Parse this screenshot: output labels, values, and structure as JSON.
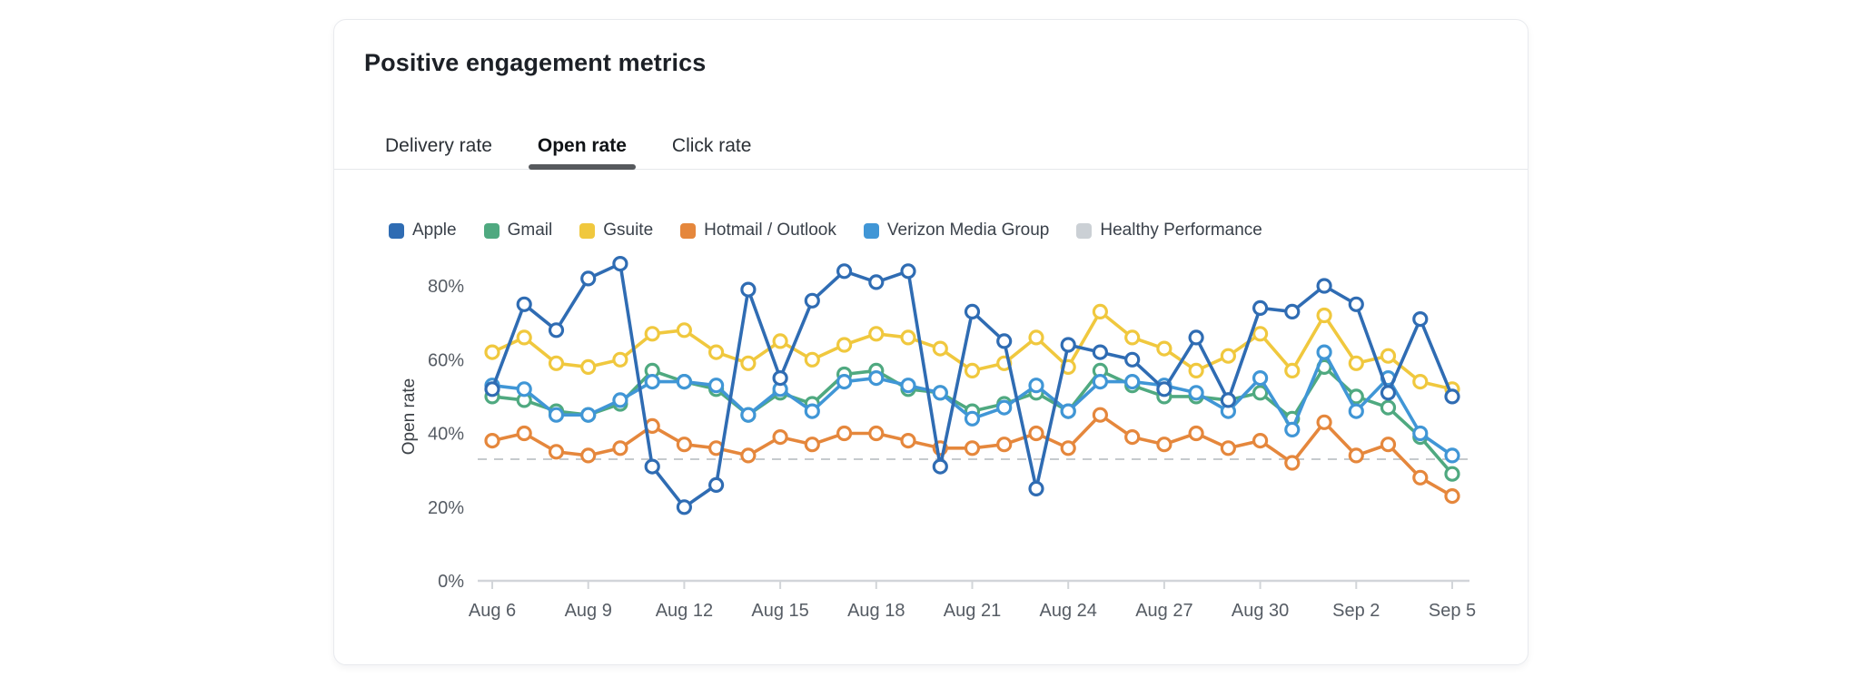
{
  "card": {
    "title": "Positive engagement metrics"
  },
  "tabs": {
    "items": [
      {
        "label": "Delivery rate",
        "active": false
      },
      {
        "label": "Open rate",
        "active": true
      },
      {
        "label": "Click rate",
        "active": false
      }
    ]
  },
  "chart_data": {
    "type": "line",
    "title": "Positive engagement metrics",
    "xlabel": "",
    "ylabel": "Open rate",
    "unit": "%",
    "ylim": [
      0,
      88
    ],
    "y_tick_labels": [
      "0%",
      "20%",
      "40%",
      "60%",
      "80%"
    ],
    "y_tick_values": [
      0,
      20,
      40,
      60,
      80
    ],
    "x_tick_labels": [
      "Aug 6",
      "Aug 9",
      "Aug 12",
      "Aug 15",
      "Aug 18",
      "Aug 21",
      "Aug 24",
      "Aug 27",
      "Aug 30",
      "Sep 2",
      "Sep 5"
    ],
    "x_start": "Aug 6",
    "x_end": "Sep 5",
    "x_step_days": 1,
    "points_per_series": 31,
    "grid": false,
    "legend_position": "top",
    "marker": "open-circle",
    "series": [
      {
        "name": "Apple",
        "color": "#2f6cb3",
        "values": [
          52,
          75,
          68,
          82,
          86,
          31,
          20,
          26,
          79,
          55,
          76,
          84,
          81,
          84,
          31,
          73,
          65,
          25,
          64,
          62,
          60,
          52,
          66,
          49,
          74,
          73,
          80,
          75,
          51,
          71,
          50
        ]
      },
      {
        "name": "Gmail",
        "color": "#4fa980",
        "values": [
          50,
          49,
          46,
          45,
          48,
          57,
          54,
          52,
          45,
          51,
          48,
          56,
          57,
          52,
          51,
          46,
          48,
          51,
          46,
          57,
          53,
          50,
          50,
          49,
          51,
          44,
          58,
          50,
          47,
          39,
          29
        ]
      },
      {
        "name": "Gsuite",
        "color": "#f0c83e",
        "values": [
          62,
          66,
          59,
          58,
          60,
          67,
          68,
          62,
          59,
          65,
          60,
          64,
          67,
          66,
          63,
          57,
          59,
          66,
          58,
          73,
          66,
          63,
          57,
          61,
          67,
          57,
          72,
          59,
          61,
          54,
          52
        ]
      },
      {
        "name": "Hotmail / Outlook",
        "color": "#e5873c",
        "values": [
          38,
          40,
          35,
          34,
          36,
          42,
          37,
          36,
          34,
          39,
          37,
          40,
          40,
          38,
          36,
          36,
          37,
          40,
          36,
          45,
          39,
          37,
          40,
          36,
          38,
          32,
          43,
          34,
          37,
          28,
          23
        ]
      },
      {
        "name": "Verizon Media Group",
        "color": "#4096d6",
        "values": [
          53,
          52,
          45,
          45,
          49,
          54,
          54,
          53,
          45,
          52,
          46,
          54,
          55,
          53,
          51,
          44,
          47,
          53,
          46,
          54,
          54,
          53,
          51,
          46,
          55,
          41,
          62,
          46,
          55,
          40,
          34
        ]
      }
    ],
    "reference_line": {
      "name": "Healthy Performance",
      "value": 33,
      "style": "dashed",
      "color": "#c6cacd",
      "chip_color": "#cbd0d5"
    },
    "draw_order": [
      "Gsuite",
      "Gmail",
      "Verizon Media Group",
      "Hotmail / Outlook",
      "Apple"
    ],
    "axis_color": "#d2d5d9",
    "tick_text_color": "#565c64",
    "ylabel_color": "#3b4046"
  }
}
